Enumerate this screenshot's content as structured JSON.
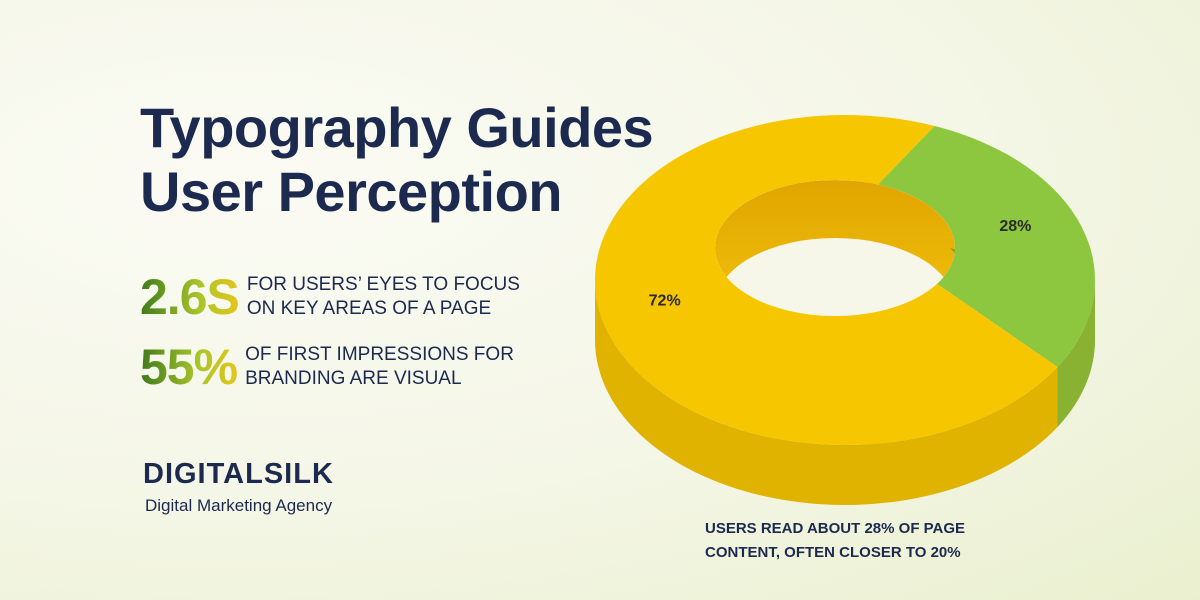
{
  "title": "Typography Guides User Perception",
  "stats": [
    {
      "number": "2.6S",
      "text": "FOR USERS’ EYES TO FOCUS ON KEY AREAS OF A PAGE"
    },
    {
      "number": "55%",
      "text": "OF FIRST IMPRESSIONS FOR BRANDING ARE VISUAL"
    }
  ],
  "brand": {
    "name": "DIGITALSILK",
    "tagline": "Digital Marketing Agency"
  },
  "chart_data": {
    "type": "donut",
    "values": [
      28,
      72
    ],
    "value_labels": [
      "28%",
      "72%"
    ],
    "colors": [
      "#8dc63f",
      "#f6c700"
    ],
    "annotation": "USERS READ ABOUT 28% OF PAGE CONTENT, OFTEN CLOSER TO 20%"
  }
}
